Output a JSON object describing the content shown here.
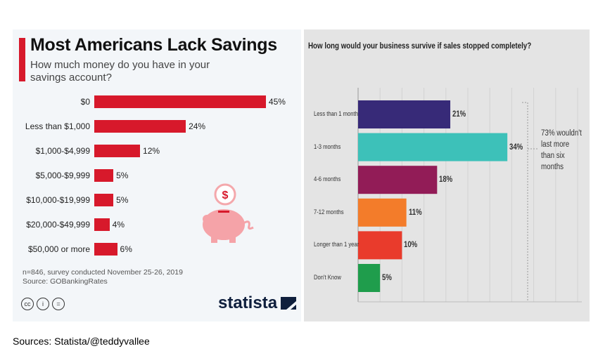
{
  "chart_data": [
    {
      "type": "bar",
      "orientation": "horizontal",
      "title": "Most Americans Lack Savings",
      "subtitle": "How much money do you have in your savings account?",
      "categories": [
        "$0",
        "Less than $1,000",
        "$1,000-$4,999",
        "$5,000-$9,999",
        "$10,000-$19,999",
        "$20,000-$49,999",
        "$50,000 or more"
      ],
      "values": [
        45,
        24,
        12,
        5,
        5,
        4,
        6
      ],
      "value_labels": [
        "45%",
        "24%",
        "12%",
        "5%",
        "5%",
        "4%",
        "6%"
      ],
      "bar_color": "#d7192b",
      "note": "n=846, survey conducted November 25-26, 2019",
      "source": "Source: GOBankingRates",
      "brand": "statista",
      "license_icons": [
        "cc-icon",
        "by-icon",
        "nd-icon"
      ],
      "decoration": "piggy-bank-dollar-icon"
    },
    {
      "type": "bar",
      "orientation": "horizontal",
      "title": "How long would your business survive if sales stopped completely?",
      "categories": [
        "Less than 1 month",
        "1-3 months",
        "4-6 months",
        "7-12 months",
        "Longer than 1 year",
        "Don't Know"
      ],
      "values": [
        21,
        34,
        18,
        11,
        10,
        5
      ],
      "value_labels": [
        "21%",
        "34%",
        "18%",
        "11%",
        "10%",
        "5%"
      ],
      "colors": [
        "#372a78",
        "#3dc1b9",
        "#921c57",
        "#f37c2a",
        "#e93b2c",
        "#1f9d4c"
      ],
      "grid": true,
      "annotation": "73% wouldn't last more than six months"
    }
  ],
  "footer": "Sources: Statista/@teddyvallee"
}
